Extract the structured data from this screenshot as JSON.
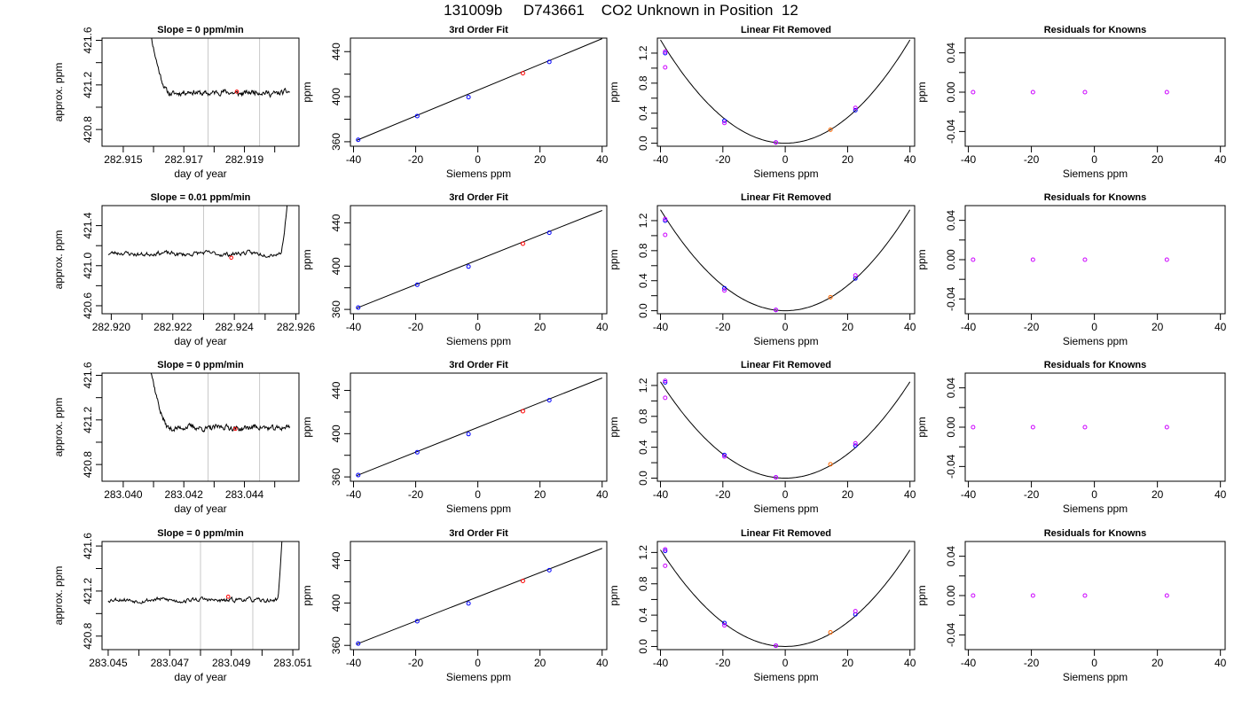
{
  "page_title": "131009b     D743661    CO2 Unknown in Position  12",
  "colors": {
    "trace": "#000000",
    "marker_window": "#c8c8c8",
    "point_red": "#ff0000",
    "point_blue": "#0000ff",
    "point_magenta": "#cc00ff",
    "point_orange": "#ff6600"
  },
  "chart_data": [
    {
      "type": "line",
      "row": 1,
      "panel": "time-series",
      "title": "Slope =  0  ppm/min",
      "xlabel": "day of year",
      "ylabel": "approx. ppm",
      "xlim": [
        282.9143,
        282.9208
      ],
      "ylim": [
        420.65,
        421.62
      ],
      "xticks": [
        282.915,
        282.917,
        282.919
      ],
      "xminor": [
        282.916,
        282.918,
        282.92
      ],
      "yticks": [
        420.8,
        421.2,
        421.6
      ],
      "yminor": [
        421.0,
        421.4
      ],
      "window": [
        282.9178,
        282.9195
      ],
      "trace": {
        "x_start": 282.9158,
        "x_end": 282.9205,
        "spike_x": 282.9158,
        "spike_end": 282.9162,
        "settle_x": 282.9165,
        "baseline": 421.13,
        "noise": 0.018,
        "end_side": "left",
        "seed": 11
      },
      "marker": {
        "x": 282.91875,
        "y": 421.14
      }
    },
    {
      "type": "scatter",
      "row": 1,
      "panel": "fit",
      "title": "3rd Order Fit",
      "xlabel": "Siemens ppm",
      "ylabel": "ppm",
      "xlim": [
        -41,
        41.5
      ],
      "ylim": [
        356,
        452
      ],
      "xticks": [
        -40,
        -20,
        0,
        20,
        40
      ],
      "yticks": [
        360,
        400,
        440
      ],
      "yminor": [
        380,
        420
      ],
      "line": {
        "x0": -39,
        "y0": 361.2,
        "x1": 40,
        "y1": 451.5
      },
      "points": [
        {
          "x": -38.5,
          "y": 361.7,
          "c": "point_blue"
        },
        {
          "x": -19.5,
          "y": 382.8,
          "c": "point_blue"
        },
        {
          "x": -3.0,
          "y": 399.6,
          "c": "point_blue"
        },
        {
          "x": 14.5,
          "y": 420.8,
          "c": "point_red"
        },
        {
          "x": 23.0,
          "y": 430.9,
          "c": "point_blue"
        }
      ]
    },
    {
      "type": "scatter",
      "row": 1,
      "panel": "linear-removed",
      "title": "Linear Fit Removed",
      "xlabel": "Siemens ppm",
      "ylabel": "ppm",
      "xlim": [
        -41,
        41.5
      ],
      "ylim": [
        -0.04,
        1.4
      ],
      "xticks": [
        -40,
        -20,
        0,
        20,
        40
      ],
      "yticks": [
        0.0,
        0.4,
        0.8,
        1.2
      ],
      "yminor": [
        0.2,
        0.6,
        1.0
      ],
      "curve": {
        "a": 0.00086,
        "x0": 0,
        "y0": 0.0
      },
      "points": [
        {
          "x": -38.5,
          "y": 1.2,
          "c": "point_blue"
        },
        {
          "x": -38.5,
          "y": 1.22,
          "c": "point_magenta"
        },
        {
          "x": -38.5,
          "y": 1.01,
          "c": "point_magenta"
        },
        {
          "x": -19.5,
          "y": 0.3,
          "c": "point_blue"
        },
        {
          "x": -19.5,
          "y": 0.27,
          "c": "point_magenta"
        },
        {
          "x": -3.0,
          "y": 0.01,
          "c": "point_blue"
        },
        {
          "x": -3.0,
          "y": 0.01,
          "c": "point_magenta"
        },
        {
          "x": 14.5,
          "y": 0.18,
          "c": "point_orange"
        },
        {
          "x": 22.5,
          "y": 0.44,
          "c": "point_blue"
        },
        {
          "x": 22.5,
          "y": 0.47,
          "c": "point_magenta"
        }
      ]
    },
    {
      "type": "scatter",
      "row": 1,
      "panel": "residuals",
      "title": "Residuals for Knowns",
      "xlabel": "Siemens ppm",
      "ylabel": "ppm",
      "xlim": [
        -41,
        41.5
      ],
      "ylim": [
        -0.055,
        0.055
      ],
      "xticks": [
        -40,
        -20,
        0,
        20,
        40
      ],
      "yticks": [
        -0.04,
        0.0,
        0.04
      ],
      "ytick_labels": [
        "-0.04",
        "0.00",
        "0.04"
      ],
      "yminor": [
        -0.02,
        0.02
      ],
      "points": [
        {
          "x": -38.5,
          "y": 0.0,
          "c": "point_magenta"
        },
        {
          "x": -19.5,
          "y": 0.0,
          "c": "point_magenta"
        },
        {
          "x": -3.0,
          "y": 0.0,
          "c": "point_magenta"
        },
        {
          "x": 23.0,
          "y": 0.0,
          "c": "point_magenta"
        }
      ]
    },
    {
      "type": "line",
      "row": 2,
      "panel": "time-series",
      "title": "Slope =  0.01  ppm/min",
      "xlabel": "day of year",
      "ylabel": "approx. ppm",
      "xlim": [
        282.9197,
        282.9261
      ],
      "ylim": [
        420.52,
        421.6
      ],
      "xticks": [
        282.92,
        282.922,
        282.924,
        282.926
      ],
      "xminor": [
        282.921,
        282.923,
        282.925
      ],
      "yticks": [
        420.6,
        421.0,
        421.4
      ],
      "yminor": [
        420.8,
        421.2
      ],
      "window": [
        282.923,
        282.9248
      ],
      "trace": {
        "x_start": 282.9199,
        "x_end": 282.9258,
        "spike_x": 282.9258,
        "spike_end": 282.9256,
        "settle_x": 282.9255,
        "baseline": 421.12,
        "noise": 0.016,
        "end_side": "right",
        "seed": 23
      },
      "marker": {
        "x": 282.9239,
        "y": 421.08
      }
    },
    {
      "type": "scatter",
      "row": 2,
      "panel": "fit",
      "title": "3rd Order Fit",
      "xlabel": "Siemens ppm",
      "ylabel": "ppm",
      "xlim": [
        -41,
        41.5
      ],
      "ylim": [
        356,
        456
      ],
      "xticks": [
        -40,
        -20,
        0,
        20,
        40
      ],
      "yticks": [
        360,
        400,
        440
      ],
      "yminor": [
        380,
        420
      ],
      "line": {
        "x0": -39,
        "y0": 361.2,
        "x1": 40,
        "y1": 451.5
      },
      "points": [
        {
          "x": -38.5,
          "y": 361.7,
          "c": "point_blue"
        },
        {
          "x": -19.5,
          "y": 382.8,
          "c": "point_blue"
        },
        {
          "x": -3.0,
          "y": 399.6,
          "c": "point_blue"
        },
        {
          "x": 14.5,
          "y": 420.8,
          "c": "point_red"
        },
        {
          "x": 23.0,
          "y": 430.9,
          "c": "point_blue"
        }
      ]
    },
    {
      "type": "scatter",
      "row": 2,
      "panel": "linear-removed",
      "title": "Linear Fit Removed",
      "xlabel": "Siemens ppm",
      "ylabel": "ppm",
      "xlim": [
        -41,
        41.5
      ],
      "ylim": [
        -0.04,
        1.4
      ],
      "xticks": [
        -40,
        -20,
        0,
        20,
        40
      ],
      "yticks": [
        0.0,
        0.4,
        0.8,
        1.2
      ],
      "yminor": [
        0.2,
        0.6,
        1.0
      ],
      "curve": {
        "a": 0.00084,
        "x0": 0,
        "y0": 0.0
      },
      "points": [
        {
          "x": -38.5,
          "y": 1.2,
          "c": "point_blue"
        },
        {
          "x": -38.5,
          "y": 1.22,
          "c": "point_magenta"
        },
        {
          "x": -38.5,
          "y": 1.01,
          "c": "point_magenta"
        },
        {
          "x": -19.5,
          "y": 0.3,
          "c": "point_blue"
        },
        {
          "x": -19.5,
          "y": 0.27,
          "c": "point_magenta"
        },
        {
          "x": -3.0,
          "y": 0.01,
          "c": "point_blue"
        },
        {
          "x": -3.0,
          "y": 0.01,
          "c": "point_magenta"
        },
        {
          "x": 14.5,
          "y": 0.18,
          "c": "point_orange"
        },
        {
          "x": 22.5,
          "y": 0.43,
          "c": "point_blue"
        },
        {
          "x": 22.5,
          "y": 0.47,
          "c": "point_magenta"
        }
      ]
    },
    {
      "type": "scatter",
      "row": 2,
      "panel": "residuals",
      "title": "Residuals for Knowns",
      "xlabel": "Siemens ppm",
      "ylabel": "ppm",
      "xlim": [
        -41,
        41.5
      ],
      "ylim": [
        -0.055,
        0.055
      ],
      "xticks": [
        -40,
        -20,
        0,
        20,
        40
      ],
      "yticks": [
        -0.04,
        0.0,
        0.04
      ],
      "ytick_labels": [
        "-0.04",
        "0.00",
        "0.04"
      ],
      "yminor": [
        -0.02,
        0.02
      ],
      "points": [
        {
          "x": -38.5,
          "y": 0.0,
          "c": "point_magenta"
        },
        {
          "x": -19.5,
          "y": 0.0,
          "c": "point_magenta"
        },
        {
          "x": -3.0,
          "y": 0.0,
          "c": "point_magenta"
        },
        {
          "x": 23.0,
          "y": 0.0,
          "c": "point_magenta"
        }
      ]
    },
    {
      "type": "line",
      "row": 3,
      "panel": "time-series",
      "title": "Slope =  0  ppm/min",
      "xlabel": "day of year",
      "ylabel": "approx. ppm",
      "xlim": [
        283.0393,
        283.0458
      ],
      "ylim": [
        420.65,
        421.62
      ],
      "xticks": [
        283.04,
        283.042,
        283.044
      ],
      "xminor": [
        283.041,
        283.043,
        283.045
      ],
      "yticks": [
        420.8,
        421.2,
        421.6
      ],
      "yminor": [
        421.0,
        421.4
      ],
      "window": [
        283.0428,
        283.0445
      ],
      "trace": {
        "x_start": 283.0408,
        "x_end": 283.0455,
        "spike_x": 283.0408,
        "spike_end": 283.0412,
        "settle_x": 283.0415,
        "baseline": 421.13,
        "noise": 0.018,
        "end_side": "left",
        "seed": 37
      },
      "marker": {
        "x": 283.0437,
        "y": 421.12
      }
    },
    {
      "type": "scatter",
      "row": 3,
      "panel": "fit",
      "title": "3rd Order Fit",
      "xlabel": "Siemens ppm",
      "ylabel": "ppm",
      "xlim": [
        -41,
        41.5
      ],
      "ylim": [
        356,
        456
      ],
      "xticks": [
        -40,
        -20,
        0,
        20,
        40
      ],
      "yticks": [
        360,
        400,
        440
      ],
      "yminor": [
        380,
        420
      ],
      "line": {
        "x0": -39,
        "y0": 361.2,
        "x1": 40,
        "y1": 451.5
      },
      "points": [
        {
          "x": -38.5,
          "y": 361.7,
          "c": "point_blue"
        },
        {
          "x": -19.5,
          "y": 382.8,
          "c": "point_blue"
        },
        {
          "x": -3.0,
          "y": 399.6,
          "c": "point_blue"
        },
        {
          "x": 14.5,
          "y": 420.8,
          "c": "point_red"
        },
        {
          "x": 23.0,
          "y": 430.9,
          "c": "point_blue"
        }
      ]
    },
    {
      "type": "scatter",
      "row": 3,
      "panel": "linear-removed",
      "title": "Linear Fit Removed",
      "xlabel": "Siemens ppm",
      "ylabel": "ppm",
      "xlim": [
        -41,
        41.5
      ],
      "ylim": [
        -0.04,
        1.36
      ],
      "xticks": [
        -40,
        -20,
        0,
        20,
        40
      ],
      "yticks": [
        0.0,
        0.4,
        0.8,
        1.2
      ],
      "yminor": [
        0.2,
        0.6,
        1.0
      ],
      "curve": {
        "a": 0.00078,
        "x0": 0,
        "y0": 0.0
      },
      "points": [
        {
          "x": -38.5,
          "y": 1.24,
          "c": "point_blue"
        },
        {
          "x": -38.5,
          "y": 1.26,
          "c": "point_magenta"
        },
        {
          "x": -38.5,
          "y": 1.04,
          "c": "point_magenta"
        },
        {
          "x": -19.5,
          "y": 0.3,
          "c": "point_blue"
        },
        {
          "x": -19.5,
          "y": 0.28,
          "c": "point_magenta"
        },
        {
          "x": -3.0,
          "y": 0.01,
          "c": "point_blue"
        },
        {
          "x": -3.0,
          "y": 0.01,
          "c": "point_magenta"
        },
        {
          "x": 14.5,
          "y": 0.18,
          "c": "point_orange"
        },
        {
          "x": 22.5,
          "y": 0.42,
          "c": "point_blue"
        },
        {
          "x": 22.5,
          "y": 0.45,
          "c": "point_magenta"
        }
      ]
    },
    {
      "type": "scatter",
      "row": 3,
      "panel": "residuals",
      "title": "Residuals for Knowns",
      "xlabel": "Siemens ppm",
      "ylabel": "ppm",
      "xlim": [
        -41,
        41.5
      ],
      "ylim": [
        -0.055,
        0.055
      ],
      "xticks": [
        -40,
        -20,
        0,
        20,
        40
      ],
      "yticks": [
        -0.04,
        0.0,
        0.04
      ],
      "ytick_labels": [
        "-0.04",
        "0.00",
        "0.04"
      ],
      "yminor": [
        -0.02,
        0.02
      ],
      "points": [
        {
          "x": -38.5,
          "y": 0.0,
          "c": "point_magenta"
        },
        {
          "x": -19.5,
          "y": 0.0,
          "c": "point_magenta"
        },
        {
          "x": -3.0,
          "y": 0.0,
          "c": "point_magenta"
        },
        {
          "x": 23.0,
          "y": 0.0,
          "c": "point_magenta"
        }
      ]
    },
    {
      "type": "line",
      "row": 4,
      "panel": "time-series",
      "title": "Slope =  0  ppm/min",
      "xlabel": "day of year",
      "ylabel": "approx. ppm",
      "xlim": [
        283.0448,
        283.0512
      ],
      "ylim": [
        420.68,
        421.64
      ],
      "xticks": [
        283.045,
        283.047,
        283.049,
        283.051
      ],
      "xminor": [
        283.046,
        283.048,
        283.05
      ],
      "yticks": [
        420.8,
        421.2,
        421.6
      ],
      "yminor": [
        421.0,
        421.4
      ],
      "window": [
        283.048,
        283.0497
      ],
      "trace": {
        "x_start": 283.045,
        "x_end": 283.0507,
        "spike_x": 283.0507,
        "spike_end": 283.0505,
        "settle_x": 283.0505,
        "baseline": 421.12,
        "noise": 0.014,
        "end_side": "right",
        "seed": 53
      },
      "marker": {
        "x": 283.0489,
        "y": 421.15
      }
    },
    {
      "type": "scatter",
      "row": 4,
      "panel": "fit",
      "title": "3rd Order Fit",
      "xlabel": "Siemens ppm",
      "ylabel": "ppm",
      "xlim": [
        -41,
        41.5
      ],
      "ylim": [
        356,
        458
      ],
      "xticks": [
        -40,
        -20,
        0,
        20,
        40
      ],
      "yticks": [
        360,
        400,
        440
      ],
      "yminor": [
        380,
        420
      ],
      "line": {
        "x0": -39,
        "y0": 361.2,
        "x1": 40,
        "y1": 451.5
      },
      "points": [
        {
          "x": -38.5,
          "y": 361.7,
          "c": "point_blue"
        },
        {
          "x": -19.5,
          "y": 382.8,
          "c": "point_blue"
        },
        {
          "x": -3.0,
          "y": 399.6,
          "c": "point_blue"
        },
        {
          "x": 14.5,
          "y": 420.8,
          "c": "point_red"
        },
        {
          "x": 23.0,
          "y": 430.9,
          "c": "point_blue"
        }
      ]
    },
    {
      "type": "scatter",
      "row": 4,
      "panel": "linear-removed",
      "title": "Linear Fit Removed",
      "xlabel": "Siemens ppm",
      "ylabel": "ppm",
      "xlim": [
        -41,
        41.5
      ],
      "ylim": [
        -0.04,
        1.34
      ],
      "xticks": [
        -40,
        -20,
        0,
        20,
        40
      ],
      "yticks": [
        0.0,
        0.4,
        0.8,
        1.2
      ],
      "yminor": [
        0.2,
        0.6,
        1.0
      ],
      "curve": {
        "a": 0.00077,
        "x0": 0,
        "y0": 0.0
      },
      "points": [
        {
          "x": -38.5,
          "y": 1.22,
          "c": "point_blue"
        },
        {
          "x": -38.5,
          "y": 1.24,
          "c": "point_magenta"
        },
        {
          "x": -38.5,
          "y": 1.03,
          "c": "point_magenta"
        },
        {
          "x": -19.5,
          "y": 0.3,
          "c": "point_blue"
        },
        {
          "x": -19.5,
          "y": 0.27,
          "c": "point_magenta"
        },
        {
          "x": -3.0,
          "y": 0.01,
          "c": "point_blue"
        },
        {
          "x": -3.0,
          "y": 0.01,
          "c": "point_magenta"
        },
        {
          "x": 14.5,
          "y": 0.18,
          "c": "point_orange"
        },
        {
          "x": 22.5,
          "y": 0.41,
          "c": "point_blue"
        },
        {
          "x": 22.5,
          "y": 0.45,
          "c": "point_magenta"
        }
      ]
    },
    {
      "type": "scatter",
      "row": 4,
      "panel": "residuals",
      "title": "Residuals for Knowns",
      "xlabel": "Siemens ppm",
      "ylabel": "ppm",
      "xlim": [
        -41,
        41.5
      ],
      "ylim": [
        -0.055,
        0.055
      ],
      "xticks": [
        -40,
        -20,
        0,
        20,
        40
      ],
      "yticks": [
        -0.04,
        0.0,
        0.04
      ],
      "ytick_labels": [
        "-0.04",
        "0.00",
        "0.04"
      ],
      "yminor": [
        -0.02,
        0.02
      ],
      "points": [
        {
          "x": -38.5,
          "y": 0.0,
          "c": "point_magenta"
        },
        {
          "x": -19.5,
          "y": 0.0,
          "c": "point_magenta"
        },
        {
          "x": -3.0,
          "y": 0.0,
          "c": "point_magenta"
        },
        {
          "x": 23.0,
          "y": 0.0,
          "c": "point_magenta"
        }
      ]
    }
  ]
}
